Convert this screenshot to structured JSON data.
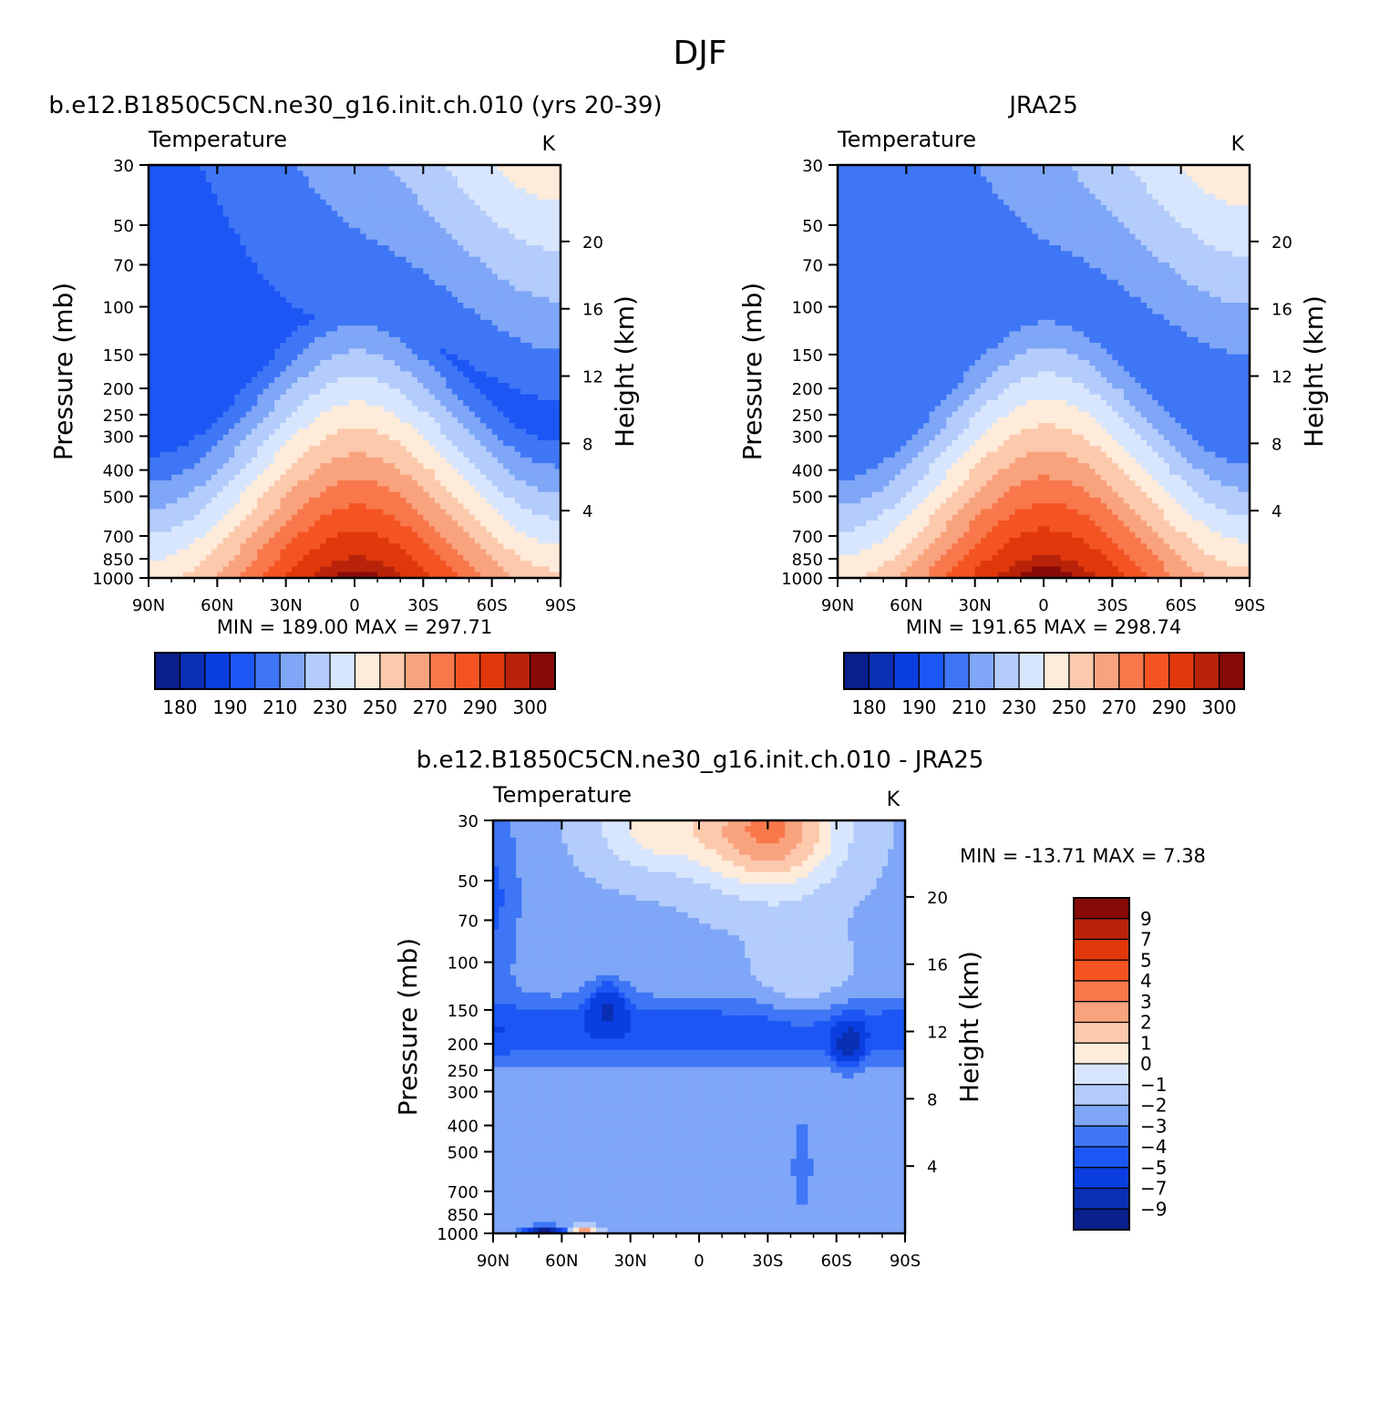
{
  "figure": {
    "season": "DJF"
  },
  "palettes": {
    "absolute": [
      "#0a1e8c",
      "#0b2fb3",
      "#0b3ee0",
      "#1c56f5",
      "#3e76f5",
      "#7fa6f7",
      "#b3ccfb",
      "#d8e6fd",
      "#feebd9",
      "#fcc9ad",
      "#f9a37e",
      "#f8784c",
      "#f45422",
      "#e0380b",
      "#b8230a",
      "#870b07"
    ],
    "difference": [
      "#0a1e8c",
      "#0b2fb3",
      "#0b3ee0",
      "#1c56f5",
      "#3e76f5",
      "#7fa6f7",
      "#b3ccfb",
      "#d8e6fd",
      "#feebd9",
      "#fcc9ad",
      "#f9a37e",
      "#f8784c",
      "#f45422",
      "#e0380b",
      "#b8230a",
      "#870b07"
    ]
  },
  "chart_data": [
    {
      "type": "heatmap",
      "id": "model",
      "header": "b.e12.B1850C5CN.ne30_g16.init.ch.010 (yrs 20-39)",
      "title": "Temperature",
      "units": "K",
      "xlabel": "",
      "ylabel": "Pressure (mb)",
      "y2label": "Height (km)",
      "x_ticks": [
        "90N",
        "60N",
        "30N",
        "0",
        "30S",
        "60S",
        "90S"
      ],
      "y_ticks": [
        30,
        50,
        70,
        100,
        150,
        200,
        250,
        300,
        400,
        500,
        700,
        850,
        1000
      ],
      "y2_ticks": [
        4,
        8,
        12,
        16,
        20
      ],
      "xlim": [
        90,
        -90
      ],
      "ylim": [
        1000,
        30
      ],
      "log_y": true,
      "min_max_text": "MIN = 189.00   MAX = 297.71",
      "field": {
        "kind": "absolute",
        "tropopause_p": 105,
        "t_min_floor": 189,
        "t_surface_eq": 298,
        "strat_gradient": 16
      },
      "colorbar": {
        "orientation": "horizontal",
        "levels": [
          175,
          180,
          185,
          190,
          200,
          210,
          220,
          230,
          240,
          250,
          260,
          270,
          280,
          290,
          295,
          300
        ],
        "labels": [
          "180",
          "190",
          "210",
          "230",
          "250",
          "270",
          "290",
          "300"
        ]
      }
    },
    {
      "type": "heatmap",
      "id": "obs",
      "header": "JRA25",
      "title": "Temperature",
      "units": "K",
      "xlabel": "",
      "ylabel": "Pressure (mb)",
      "y2label": "Height (km)",
      "x_ticks": [
        "90N",
        "60N",
        "30N",
        "0",
        "30S",
        "60S",
        "90S"
      ],
      "y_ticks": [
        30,
        50,
        70,
        100,
        150,
        200,
        250,
        300,
        400,
        500,
        700,
        850,
        1000
      ],
      "y2_ticks": [
        4,
        8,
        12,
        16,
        20
      ],
      "xlim": [
        90,
        -90
      ],
      "ylim": [
        1000,
        30
      ],
      "log_y": true,
      "min_max_text": "MIN = 191.65   MAX = 298.74",
      "field": {
        "kind": "absolute",
        "tropopause_p": 100,
        "t_min_floor": 191.65,
        "t_surface_eq": 299,
        "strat_gradient": 15
      },
      "colorbar": {
        "orientation": "horizontal",
        "levels": [
          175,
          180,
          185,
          190,
          200,
          210,
          220,
          230,
          240,
          250,
          260,
          270,
          280,
          290,
          295,
          300
        ],
        "labels": [
          "180",
          "190",
          "210",
          "230",
          "250",
          "270",
          "290",
          "300"
        ]
      }
    },
    {
      "type": "heatmap",
      "id": "diff",
      "header": "b.e12.B1850C5CN.ne30_g16.init.ch.010 - JRA25",
      "title": "Temperature",
      "units": "K",
      "xlabel": "",
      "ylabel": "Pressure (mb)",
      "y2label": "Height (km)",
      "x_ticks": [
        "90N",
        "60N",
        "30N",
        "0",
        "30S",
        "60S",
        "90S"
      ],
      "y_ticks": [
        30,
        50,
        70,
        100,
        150,
        200,
        250,
        300,
        400,
        500,
        700,
        850,
        1000
      ],
      "y2_ticks": [
        4,
        8,
        12,
        16,
        20
      ],
      "xlim": [
        90,
        -90
      ],
      "ylim": [
        1000,
        30
      ],
      "log_y": true,
      "min_max_text": "MIN = -13.71   MAX =    7.38",
      "field": {
        "kind": "difference",
        "min": -13.71,
        "max": 7.38
      },
      "colorbar": {
        "orientation": "vertical",
        "levels": [
          -9,
          -7,
          -5,
          -4,
          -3,
          -2,
          -1,
          0,
          1,
          2,
          3,
          4,
          5,
          7,
          9
        ],
        "labels": [
          "9",
          "7",
          "5",
          "4",
          "3",
          "2",
          "1",
          "0",
          "−1",
          "−2",
          "−3",
          "−4",
          "−5",
          "−7",
          "−9"
        ]
      }
    }
  ]
}
